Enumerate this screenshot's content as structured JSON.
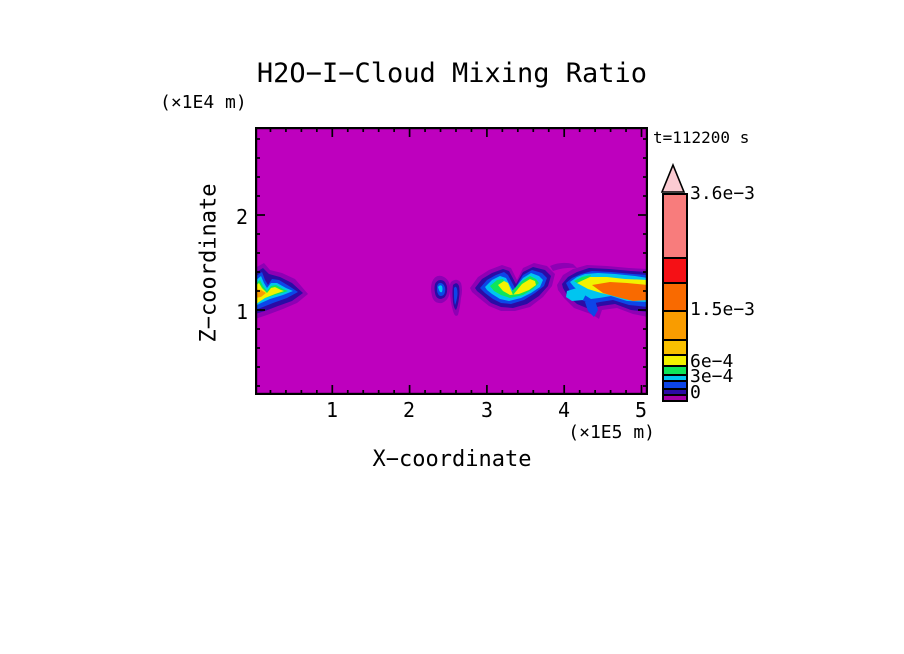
{
  "header": {
    "title": "H2O−I−Cloud Mixing Ratio",
    "z_axis_unit": "(×1E4 m)",
    "time_label": "t=112200 s"
  },
  "x_axis": {
    "label": "X−coordinate",
    "unit": "(×1E5 m)",
    "ticks": [
      "1",
      "2",
      "3",
      "4",
      "5"
    ]
  },
  "z_axis": {
    "label": "Z−coordinate",
    "ticks": [
      "1",
      "2"
    ]
  },
  "colorbar": {
    "labels": [
      "3.6e−3",
      "1.5e−3",
      "6e−4",
      "3e−4",
      "0"
    ]
  },
  "palette": {
    "background": "#BE00BE",
    "rim_purple": "#8E00B4",
    "purple": "#A400A8",
    "navy": "#2B0BA5",
    "blue": "#0D45E8",
    "cyan": "#00C5F0",
    "green": "#0FE55A",
    "yellow": "#F2F200",
    "amber": "#F9C000",
    "orange": "#F99C00",
    "dark_orange": "#F96A00",
    "red": "#F51015",
    "pink": "#F87C7C",
    "pink_light": "#FBCBD2"
  },
  "chart_data": {
    "type": "heatmap",
    "title": "H2O−I−Cloud Mixing Ratio",
    "xlabel": "X−coordinate (×1E5 m)",
    "ylabel": "Z−coordinate (×1E4 m)",
    "time": "t=112200 s",
    "x_range": [
      0,
      5.1
    ],
    "z_range": [
      0.1,
      2.9
    ],
    "grid": false,
    "legend_position": "right colorbar with upward overflow arrow",
    "labeled_contour_levels": [
      0,
      0.0003,
      0.0006,
      0.0015,
      0.0036
    ],
    "color_order_low_to_high": [
      "magenta (0, background)",
      "purple",
      "navy",
      "blue",
      "cyan",
      "green",
      "yellow",
      "amber",
      "orange",
      "dark orange",
      "red",
      "pink (> 3.6e-3)"
    ],
    "features": [
      {
        "name": "left cloud band",
        "x_extent": [
          0.0,
          0.75
        ],
        "z_extent": [
          0.95,
          1.25
        ],
        "core_value": "yellow-orange, ~1e-3"
      },
      {
        "name": "small central cloud pair",
        "x_extent": [
          2.3,
          2.7
        ],
        "z_extent": [
          0.95,
          1.3
        ],
        "core_value": "cyan-blue, ~3e-4 to 6e-4"
      },
      {
        "name": "central cloud with notched top",
        "x_extent": [
          2.8,
          3.8
        ],
        "z_extent": [
          0.95,
          1.45
        ],
        "core_value": "yellow, ~1e-3"
      },
      {
        "name": "right cloud reaching domain edge",
        "x_extent": [
          3.9,
          5.1
        ],
        "z_extent": [
          0.9,
          1.35
        ],
        "core_value": "orange, ~1.5e-3"
      }
    ]
  }
}
